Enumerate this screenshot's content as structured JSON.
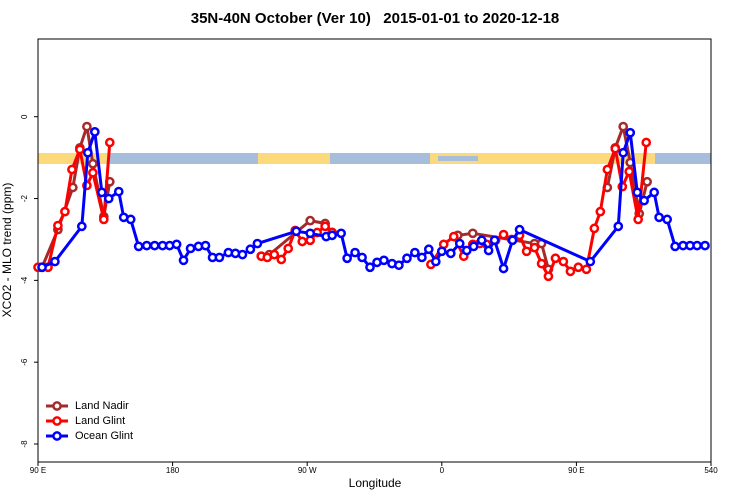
{
  "chart_data": {
    "type": "line",
    "title": "35N-40N October (Ver 10)   2015-01-01 to 2020-12-18",
    "x_label": "Longitude",
    "y_label": "XCO2 - MLO trend (ppm)",
    "xlim": [
      90,
      540
    ],
    "ylim": [
      -8.44,
      1.9
    ],
    "xticks": [
      {
        "value": 90,
        "label": "90 E"
      },
      180,
      {
        "value": 270,
        "label": "90 W"
      },
      {
        "value": 360,
        "label": "0"
      },
      {
        "value": 450,
        "label": "90 E"
      },
      540
    ],
    "yticks": [
      -8,
      -6,
      -4,
      -2,
      0
    ],
    "legend": "bottom-left",
    "series": [
      {
        "name": "Land Nadir",
        "color": "#a52a2a",
        "x": [
          92.7,
          103.3,
          113.3,
          118.0,
          122.7,
          126.7,
          134.0,
          138.0,
          null,
          239.3,
          244.7,
          272.0,
          282.0,
          286.7,
          null,
          370.7,
          380.7,
          422.0,
          426.7,
          431.3,
          null,
          470.7,
          476.0,
          481.3,
          486.0,
          492.0,
          497.3
        ],
        "values": [
          -3.68,
          -2.76,
          -1.73,
          -0.76,
          -0.24,
          -1.15,
          -2.44,
          -1.59,
          null,
          -3.41,
          -3.37,
          -2.54,
          -2.61,
          -2.83,
          null,
          -2.9,
          -2.85,
          -3.1,
          -3.1,
          -3.73,
          null,
          -1.73,
          -0.76,
          -0.24,
          -1.12,
          -2.37,
          -1.59
        ]
      },
      {
        "name": "Land Glint",
        "color": "#ff0000",
        "x": [
          90,
          96.7,
          103.3,
          108.0,
          112.7,
          118.0,
          122.7,
          126.7,
          134.0,
          138.0,
          null,
          239.3,
          243.3,
          248.0,
          252.7,
          257.3,
          262.0,
          266.7,
          272.0,
          276.7,
          282.0,
          286.7,
          null,
          352.7,
          361.3,
          368.0,
          374.7,
          380.7,
          385.3,
          390.0,
          396.0,
          401.3,
          406.7,
          412.0,
          416.7,
          422.0,
          426.7,
          431.3,
          436.0,
          441.3,
          446.0,
          451.3,
          456.7,
          462.0,
          466.0,
          470.7,
          476.0,
          480.7,
          485.3,
          491.3,
          496.7
        ],
        "values": [
          -3.68,
          -3.68,
          -2.66,
          -2.32,
          -1.29,
          -0.8,
          -1.68,
          -1.37,
          -2.51,
          -0.63,
          null,
          -3.41,
          -3.44,
          -3.37,
          -3.49,
          -3.22,
          -2.78,
          -3.05,
          -3.02,
          -2.83,
          -2.68,
          -2.83,
          null,
          -3.61,
          -3.12,
          -2.93,
          -3.41,
          -3.12,
          -3.1,
          -3.12,
          -3.02,
          -2.88,
          -3.0,
          -2.9,
          -3.29,
          -3.2,
          -3.59,
          -3.9,
          -3.46,
          -3.54,
          -3.78,
          -3.68,
          -3.73,
          -2.73,
          -2.32,
          -1.29,
          -0.78,
          -1.71,
          -1.34,
          -2.51,
          -0.63
        ]
      },
      {
        "name": "Ocean Glint",
        "color": "#0000ff",
        "x": [
          92.7,
          101.3,
          119.3,
          123.3,
          128.0,
          132.7,
          137.3,
          144.0,
          147.3,
          152.0,
          157.3,
          162.7,
          168.0,
          173.3,
          178.0,
          182.7,
          187.3,
          192.0,
          197.3,
          202.0,
          206.7,
          211.3,
          217.3,
          222.0,
          226.7,
          232.0,
          236.7,
          262.7,
          272.0,
          282.7,
          286.7,
          292.7,
          296.7,
          302.0,
          306.7,
          312.0,
          316.7,
          321.3,
          326.7,
          331.3,
          336.7,
          342.0,
          346.7,
          351.3,
          356.0,
          360.0,
          366.0,
          372.0,
          376.7,
          381.3,
          386.7,
          391.3,
          395.3,
          401.3,
          407.3,
          412.0,
          459.3,
          478.0,
          481.3,
          486.0,
          490.7,
          495.3,
          502.0,
          505.3,
          510.7,
          516.0,
          521.3,
          526.0,
          530.7,
          536.0
        ],
        "values": [
          -3.68,
          -3.54,
          -2.68,
          -0.88,
          -0.37,
          -1.85,
          -2.0,
          -1.83,
          -2.46,
          -2.51,
          -3.17,
          -3.15,
          -3.15,
          -3.15,
          -3.15,
          -3.12,
          -3.51,
          -3.22,
          -3.17,
          -3.15,
          -3.44,
          -3.44,
          -3.32,
          -3.34,
          -3.37,
          -3.24,
          -3.1,
          -2.8,
          -2.85,
          -2.93,
          -2.9,
          -2.85,
          -3.46,
          -3.32,
          -3.44,
          -3.68,
          -3.56,
          -3.51,
          -3.59,
          -3.63,
          -3.46,
          -3.32,
          -3.44,
          -3.24,
          -3.54,
          -3.29,
          -3.34,
          -3.1,
          -3.27,
          -3.17,
          -3.02,
          -3.27,
          -3.02,
          -3.71,
          -3.02,
          -2.76,
          -3.54,
          -2.68,
          -0.88,
          -0.39,
          -1.85,
          -2.05,
          -1.85,
          -2.46,
          -2.51,
          -3.17,
          -3.15,
          -3.15,
          -3.15,
          -3.15
        ]
      }
    ]
  }
}
